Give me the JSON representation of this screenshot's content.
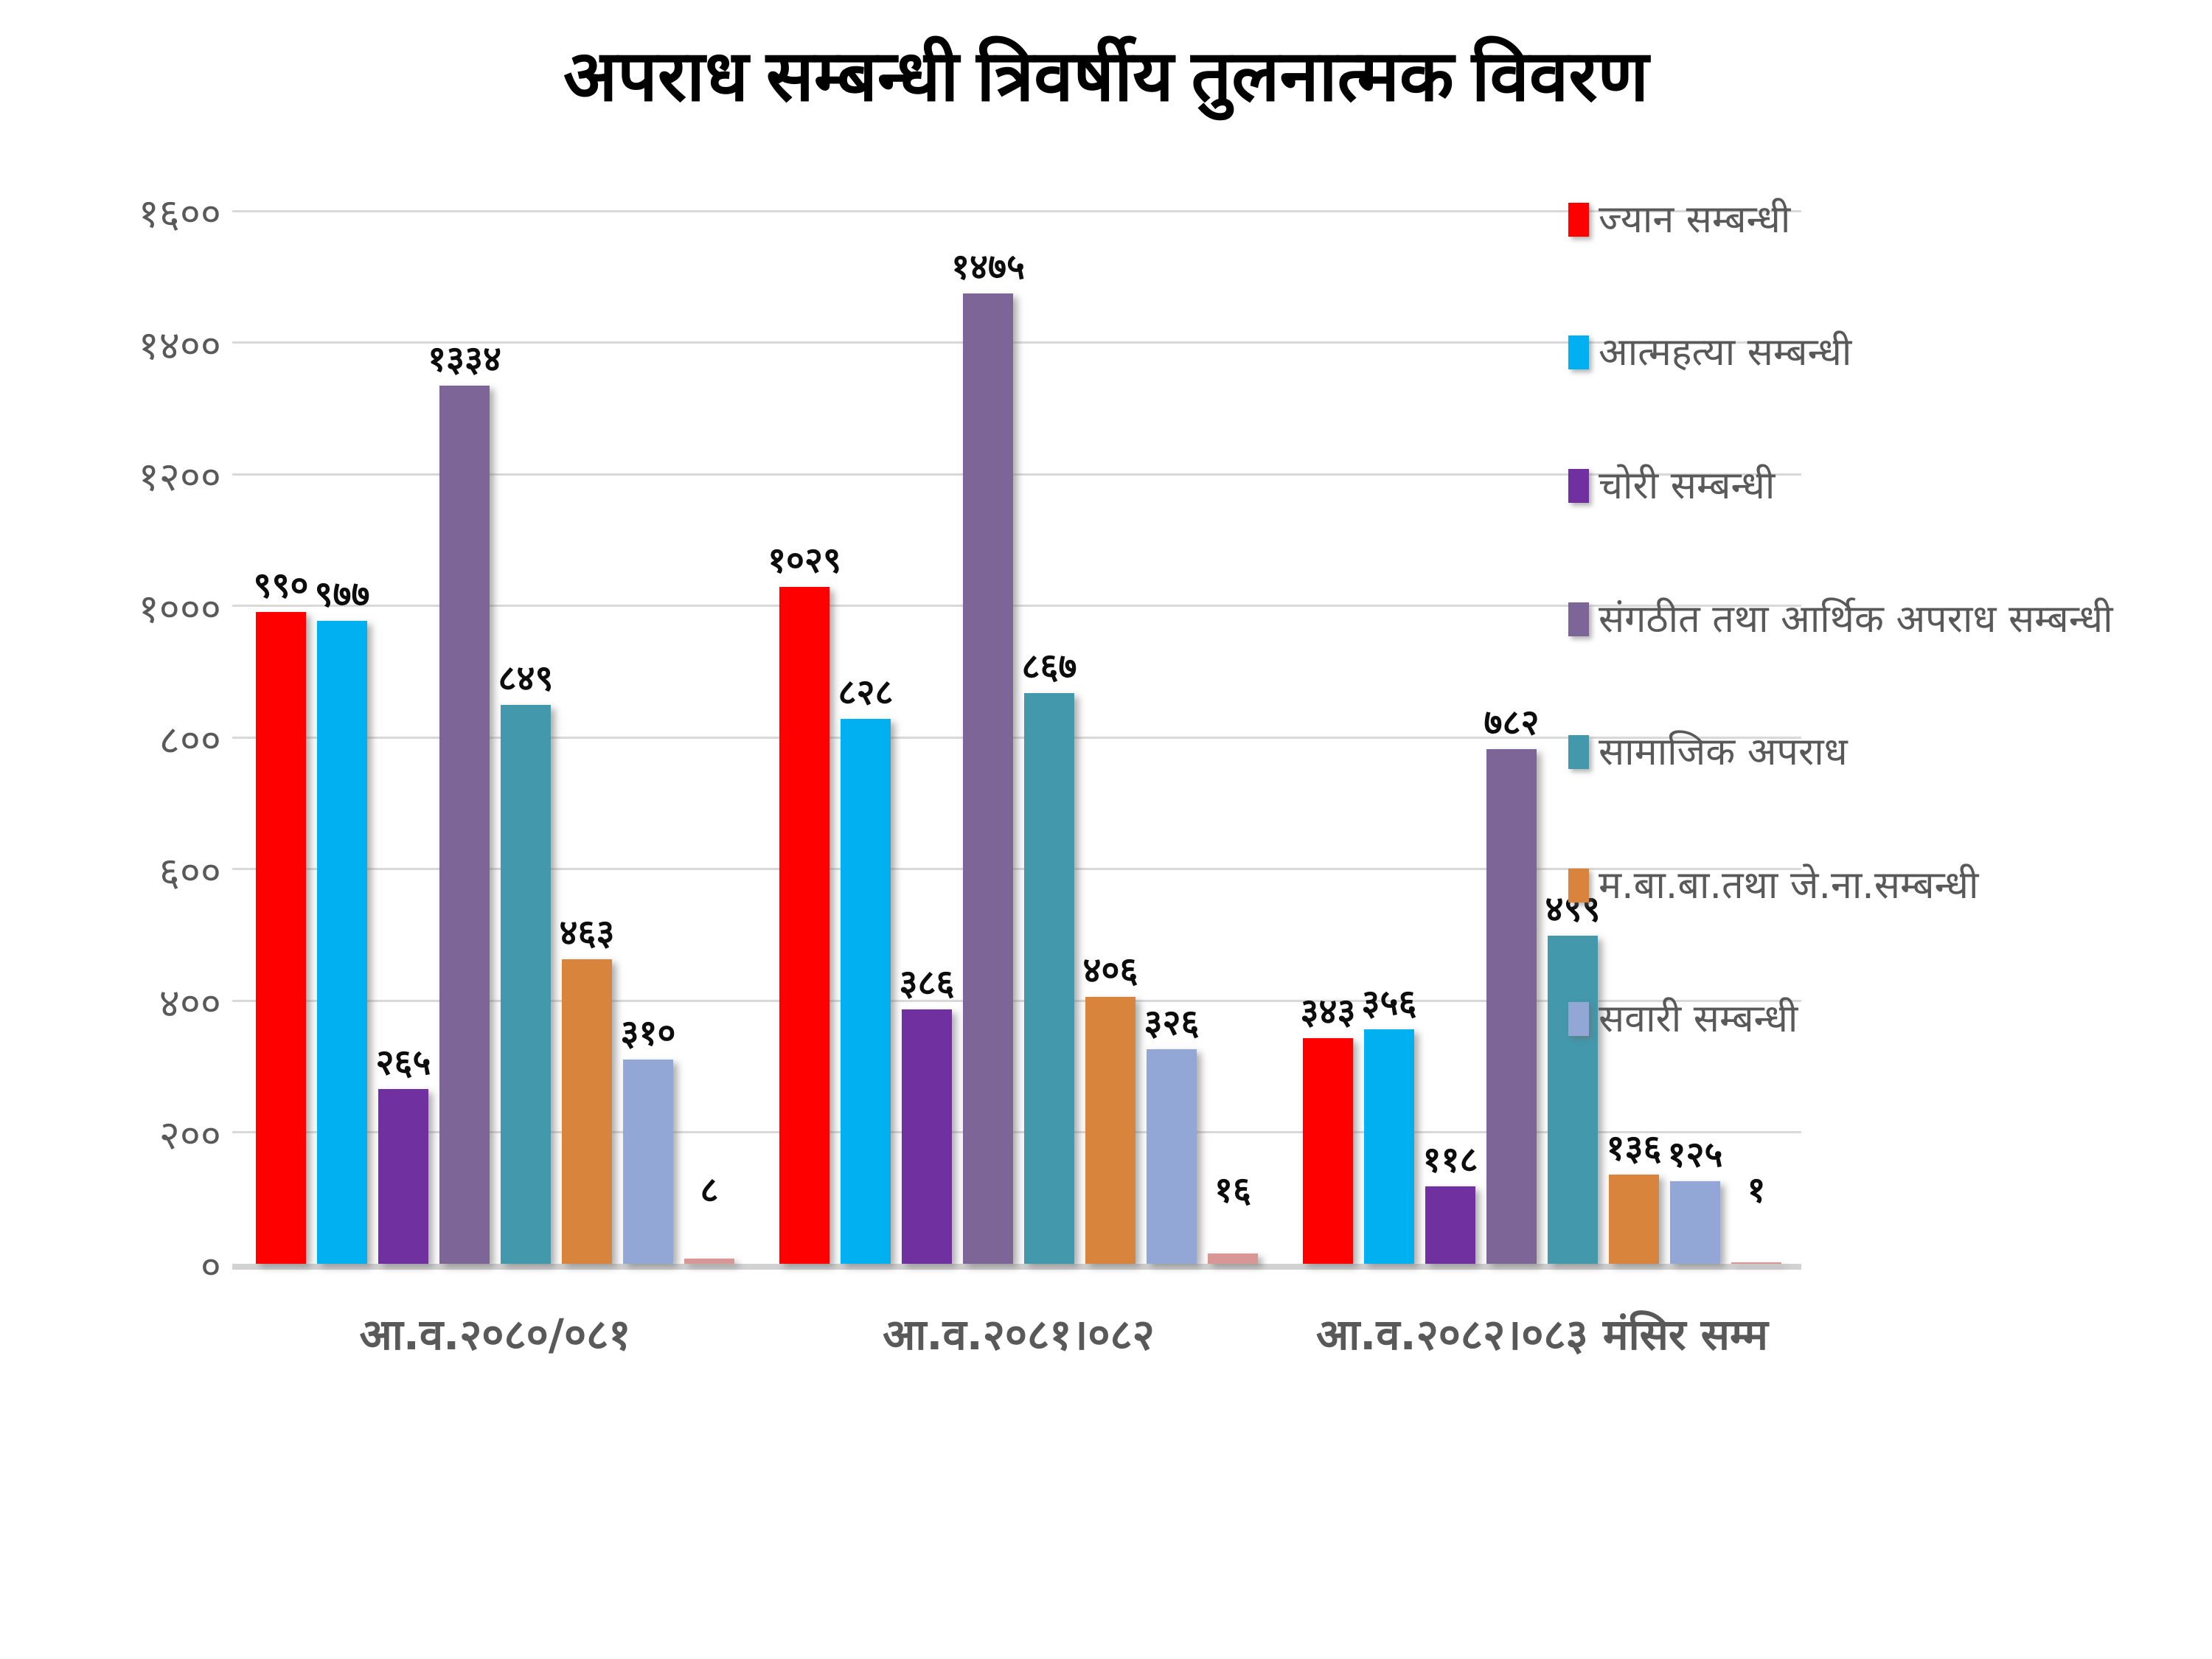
{
  "title": "अपराध सम्बन्धी त्रिवर्षीय तुलनात्मक विवरण",
  "colors": {
    "background": "#FFFFFF",
    "gridline": "#D9D9D9",
    "baseline": "#D2D2D2",
    "axis_text": "#595959",
    "value_label_text": "#0D0D0D",
    "title_text": "#000000"
  },
  "chart_data": {
    "type": "bar",
    "title": "अपराध सम्बन्धी त्रिवर्षीय तुलनात्मक विवरण",
    "grid": true,
    "legend_position": "right",
    "xlabel": "",
    "ylabel": "",
    "ylim": [
      0,
      1600
    ],
    "y_axis": {
      "min": 0,
      "max": 1600,
      "step": 200,
      "tick_labels": [
        "०",
        "२००",
        "४००",
        "६००",
        "८००",
        "१०००",
        "१२००",
        "१४००",
        "१६००"
      ]
    },
    "categories": [
      "आ.व.२०८०/०८१",
      "आ.व.२०८१।०८२",
      "आ.व.२०८२।०८३ मंसिर सम्म"
    ],
    "series": [
      {
        "name": "ज्यान सम्बन्धी",
        "color": "#FF0000",
        "legend": true,
        "values": [
          990,
          1029,
          343
        ],
        "labels": [
          "९९०",
          "१०२९",
          "३४३"
        ]
      },
      {
        "name": "आत्महत्या सम्बन्धी",
        "color": "#00B0F0",
        "legend": true,
        "values": [
          977,
          828,
          356
        ],
        "labels": [
          "९७७",
          "८२८",
          "३५६"
        ]
      },
      {
        "name": "चोरी सम्बन्धी",
        "color": "#7030A0",
        "legend": true,
        "values": [
          265,
          386,
          118
        ],
        "labels": [
          "२६५",
          "३८६",
          "११८"
        ]
      },
      {
        "name": "संगठीत तथा आर्थिक अपराध सम्बन्धी",
        "color": "#7D6598",
        "legend": true,
        "values": [
          1334,
          1475,
          782
        ],
        "labels": [
          "१३३४",
          "१४७५",
          "७८२"
        ]
      },
      {
        "name": "सामाजिक अपराध",
        "color": "#4398AC",
        "legend": true,
        "values": [
          849,
          867,
          499
        ],
        "labels": [
          "८४९",
          "८६७",
          "४९९"
        ]
      },
      {
        "name": "म.बा.बा.तथा जे.ना.सम्बन्धी",
        "color": "#D9843C",
        "legend": true,
        "values": [
          463,
          406,
          136
        ],
        "labels": [
          "४६३",
          "४०६",
          "१३६"
        ]
      },
      {
        "name": "सवारी सम्बन्धी",
        "color": "#92A7D5",
        "legend": true,
        "values": [
          310,
          326,
          125
        ],
        "labels": [
          "३१०",
          "३२६",
          "१२५"
        ]
      },
      {
        "name": "",
        "color": "#D89795",
        "legend": false,
        "values": [
          8,
          16,
          1
        ],
        "labels": [
          "८",
          "१६",
          "१"
        ]
      }
    ]
  }
}
